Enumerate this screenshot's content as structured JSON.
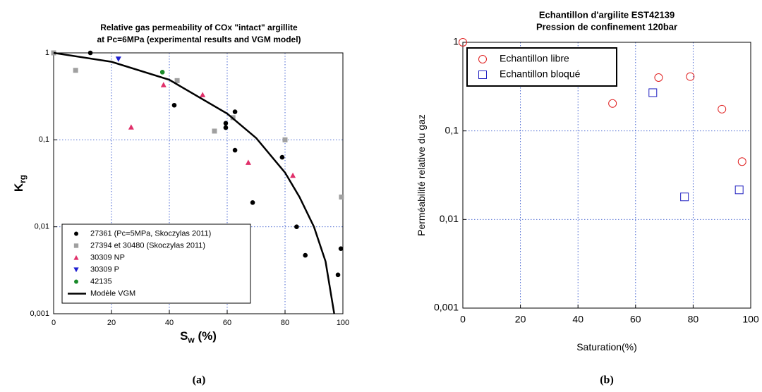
{
  "chart_data": [
    {
      "type": "scatter",
      "title": [
        "Relative gas permeability of COx \"intact\" argillite",
        "at Pc=6MPa (experimental results and VGM model)"
      ],
      "xlabel": {
        "main": "S",
        "sub": "w",
        "suffix": " (%)"
      },
      "ylabel": {
        "main": "K",
        "sub": "rg"
      },
      "caption": "(a)",
      "xlim": [
        0,
        100
      ],
      "xticks": [
        0,
        20,
        40,
        60,
        80,
        100
      ],
      "ylim": [
        0.001,
        1
      ],
      "yscale": "log",
      "yticks": [
        {
          "value": 0.001,
          "label": "0,001"
        },
        {
          "value": 0.01,
          "label": "0,01"
        },
        {
          "value": 0.1,
          "label": "0,1"
        },
        1
      ],
      "grid": true,
      "legend": "lower left",
      "bold_labels": true,
      "series": [
        {
          "name": "27361 (Pc=5MPa, Skoczylas 2011)",
          "color": "#000000",
          "marker": "circle",
          "x": [
            12.7,
            41.7,
            59.5,
            59.5,
            62.7,
            62.7,
            68.8,
            79,
            84,
            87,
            98.3,
            99.3
          ],
          "values": [
            1,
            0.25,
            0.155,
            0.138,
            0.21,
            0.076,
            0.019,
            0.063,
            0.01,
            0.0047,
            0.0028,
            0.0056
          ]
        },
        {
          "name": "27394 et 30480 (Skoczylas 2011)",
          "color": "#a0a0a0",
          "marker": "square",
          "x": [
            0,
            7.6,
            42.7,
            55.6,
            62,
            80,
            99.5
          ],
          "values": [
            1,
            0.63,
            0.48,
            0.126,
            0.18,
            0.1,
            0.022
          ]
        },
        {
          "name": "30309 NP",
          "color": "#e0306a",
          "marker": "triangle",
          "x": [
            26.8,
            38,
            51.5,
            67.3,
            82.7
          ],
          "values": [
            0.14,
            0.43,
            0.33,
            0.055,
            0.039
          ]
        },
        {
          "name": "30309 P",
          "color": "#1f1fd0",
          "marker": "triangle-down",
          "x": [
            22.4
          ],
          "values": [
            0.85
          ]
        },
        {
          "name": "42135",
          "color": "#1a8a2a",
          "marker": "circle",
          "x": [
            37.6
          ],
          "values": [
            0.6
          ]
        },
        {
          "name": "Modèle VGM",
          "color": "#000000",
          "marker": "line",
          "x": [
            0,
            20,
            40,
            60,
            70,
            80,
            85,
            90,
            94,
            97
          ],
          "values": [
            1,
            0.79,
            0.49,
            0.2,
            0.105,
            0.042,
            0.022,
            0.01,
            0.004,
            0.001
          ]
        }
      ]
    },
    {
      "type": "scatter",
      "title": [
        "Echantillon d'argilite EST42139",
        "Pression de confinement 120bar"
      ],
      "xlabel": {
        "main": "Saturation(%)"
      },
      "ylabel": {
        "main": "Perméabilité relative du gaz"
      },
      "caption": "(b)",
      "xlim": [
        0,
        100
      ],
      "xticks": [
        0,
        20,
        40,
        60,
        80,
        100
      ],
      "ylim": [
        0.001,
        1
      ],
      "yscale": "log",
      "yticks": [
        {
          "value": 0.001,
          "label": "0,001"
        },
        {
          "value": 0.01,
          "label": "0,01"
        },
        {
          "value": 0.1,
          "label": "0,1"
        },
        1
      ],
      "grid": true,
      "legend": "upper left",
      "bold_labels": false,
      "series": [
        {
          "name": "Echantillon libre",
          "color": "#e02020",
          "marker": "open-circle",
          "x": [
            0,
            52,
            68,
            79,
            90,
            97
          ],
          "values": [
            1,
            0.204,
            0.4,
            0.41,
            0.176,
            0.045
          ]
        },
        {
          "name": "Echantillon bloqué",
          "color": "#2020c0",
          "marker": "open-square",
          "x": [
            66,
            77,
            96
          ],
          "values": [
            0.27,
            0.018,
            0.0216
          ]
        }
      ]
    }
  ]
}
